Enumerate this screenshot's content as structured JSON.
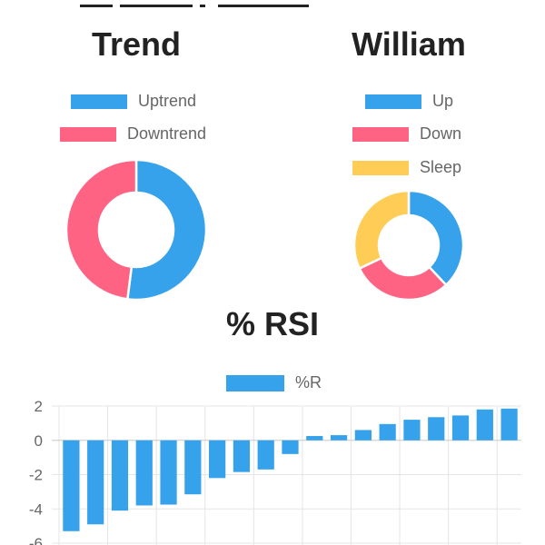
{
  "colors": {
    "blue": "#36a2eb",
    "pink": "#ff6384",
    "yellow": "#ffcd56",
    "grid": "#e5e5e5",
    "tick": "#666666"
  },
  "chart_data": [
    {
      "type": "pie",
      "variant": "doughnut",
      "title": "Trend",
      "legend_position": "top",
      "labels": [
        "Uptrend",
        "Downtrend"
      ],
      "values": [
        52,
        48
      ],
      "colors": [
        "#36a2eb",
        "#ff6384"
      ]
    },
    {
      "type": "pie",
      "variant": "doughnut",
      "title": "William",
      "legend_position": "top",
      "labels": [
        "Up",
        "Down",
        "Sleep"
      ],
      "values": [
        38,
        30,
        32
      ],
      "colors": [
        "#36a2eb",
        "#ff6384",
        "#ffcd56"
      ]
    },
    {
      "type": "bar",
      "title": "% RSI",
      "legend_position": "top",
      "series": [
        {
          "name": "%R",
          "color": "#36a2eb",
          "values": [
            -5.3,
            -4.9,
            -4.1,
            -3.8,
            -3.75,
            -3.15,
            -2.2,
            -1.85,
            -1.7,
            -0.8,
            0.25,
            0.3,
            0.6,
            0.95,
            1.2,
            1.35,
            1.45,
            1.8,
            1.85
          ]
        }
      ],
      "y_ticks": [
        "2",
        "0",
        "-2",
        "-4",
        "-6"
      ],
      "ylim": [
        -6,
        2
      ],
      "grid": true
    }
  ]
}
